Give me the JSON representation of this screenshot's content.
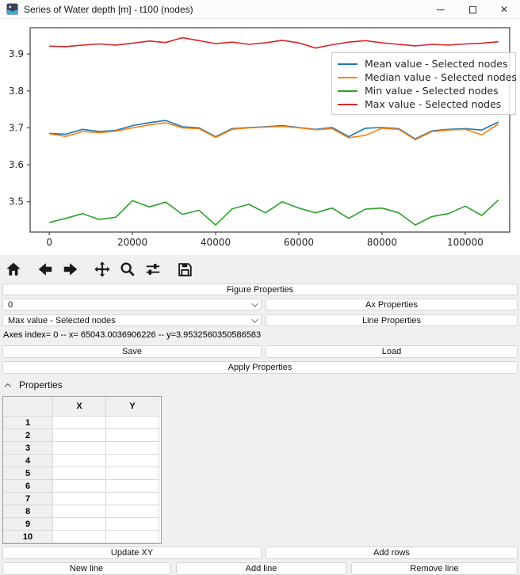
{
  "window": {
    "title": "Series of Water depth [m] - t100 (nodes)",
    "icon": "water-app-icon",
    "controls": {
      "minimize": "minimize",
      "maximize": "maximize",
      "close": "close"
    }
  },
  "toolbar": {
    "icons": [
      {
        "name": "home"
      },
      {
        "name": "back"
      },
      {
        "name": "forward"
      },
      {
        "name": "pan"
      },
      {
        "name": "zoom"
      },
      {
        "name": "configure-subplots"
      },
      {
        "name": "save-figure"
      }
    ]
  },
  "controls": {
    "figure_properties": "Figure Properties",
    "axes_select_value": "0",
    "ax_properties": "Ax Properties",
    "line_select_value": "Max value - Selected nodes",
    "line_properties": "Line Properties",
    "status": "Axes index= 0 -- x= 65043.0036906226 -- y=3.9532560350586583",
    "save": "Save",
    "load": "Load",
    "apply": "Apply Properties"
  },
  "properties_panel": {
    "header": "Properties",
    "table": {
      "columns": [
        "",
        "X",
        "Y"
      ],
      "row_numbers": [
        "1",
        "2",
        "3",
        "4",
        "5",
        "6",
        "7",
        "8",
        "9",
        "10"
      ],
      "cells_x": [
        "",
        "",
        "",
        "",
        "",
        "",
        "",
        "",
        "",
        ""
      ],
      "cells_y": [
        "",
        "",
        "",
        "",
        "",
        "",
        "",
        "",
        "",
        ""
      ]
    },
    "buttons": {
      "update_xy": "Update XY",
      "add_rows": "Add rows",
      "new_line": "New line",
      "add_line": "Add line",
      "remove_line": "Remove line"
    }
  },
  "chart_data": {
    "type": "line",
    "title": "",
    "xlabel": "",
    "ylabel": "",
    "x": [
      0,
      4000,
      8000,
      12000,
      16000,
      20000,
      24000,
      28000,
      32000,
      36000,
      40000,
      44000,
      48000,
      52000,
      56000,
      60000,
      64000,
      68000,
      72000,
      76000,
      80000,
      84000,
      88000,
      92000,
      96000,
      100000,
      104000,
      108000
    ],
    "series": [
      {
        "name": "Mean value - Selected nodes",
        "color": "#1f77b4",
        "values": [
          3.685,
          3.683,
          3.696,
          3.69,
          3.693,
          3.706,
          3.714,
          3.72,
          3.703,
          3.7,
          3.676,
          3.698,
          3.701,
          3.703,
          3.706,
          3.701,
          3.696,
          3.701,
          3.676,
          3.699,
          3.701,
          3.698,
          3.67,
          3.692,
          3.696,
          3.698,
          3.694,
          3.716
        ]
      },
      {
        "name": "Median value - Selected nodes",
        "color": "#ff7f0e",
        "values": [
          3.684,
          3.677,
          3.69,
          3.687,
          3.691,
          3.7,
          3.708,
          3.714,
          3.7,
          3.698,
          3.674,
          3.696,
          3.7,
          3.702,
          3.704,
          3.7,
          3.695,
          3.698,
          3.673,
          3.68,
          3.699,
          3.696,
          3.668,
          3.69,
          3.694,
          3.696,
          3.681,
          3.711
        ]
      },
      {
        "name": "Min value - Selected nodes",
        "color": "#2ca02c",
        "values": [
          3.444,
          3.455,
          3.468,
          3.452,
          3.458,
          3.503,
          3.486,
          3.499,
          3.466,
          3.477,
          3.437,
          3.481,
          3.493,
          3.47,
          3.5,
          3.483,
          3.47,
          3.483,
          3.455,
          3.48,
          3.483,
          3.47,
          3.437,
          3.46,
          3.468,
          3.488,
          3.463,
          3.505
        ]
      },
      {
        "name": "Max value - Selected nodes",
        "color": "#d62728",
        "values": [
          3.921,
          3.92,
          3.924,
          3.927,
          3.924,
          3.929,
          3.935,
          3.931,
          3.944,
          3.936,
          3.928,
          3.932,
          3.926,
          3.93,
          3.937,
          3.93,
          3.916,
          3.925,
          3.932,
          3.936,
          3.93,
          3.926,
          3.922,
          3.926,
          3.924,
          3.927,
          3.929,
          3.933
        ]
      }
    ],
    "xticks": [
      0,
      20000,
      40000,
      60000,
      80000,
      100000
    ],
    "yticks": [
      3.5,
      3.6,
      3.7,
      3.8,
      3.9
    ],
    "xlim": [
      -4600,
      110700
    ],
    "ylim": [
      3.418,
      3.971
    ],
    "grid": false,
    "legend_position": "upper right"
  }
}
